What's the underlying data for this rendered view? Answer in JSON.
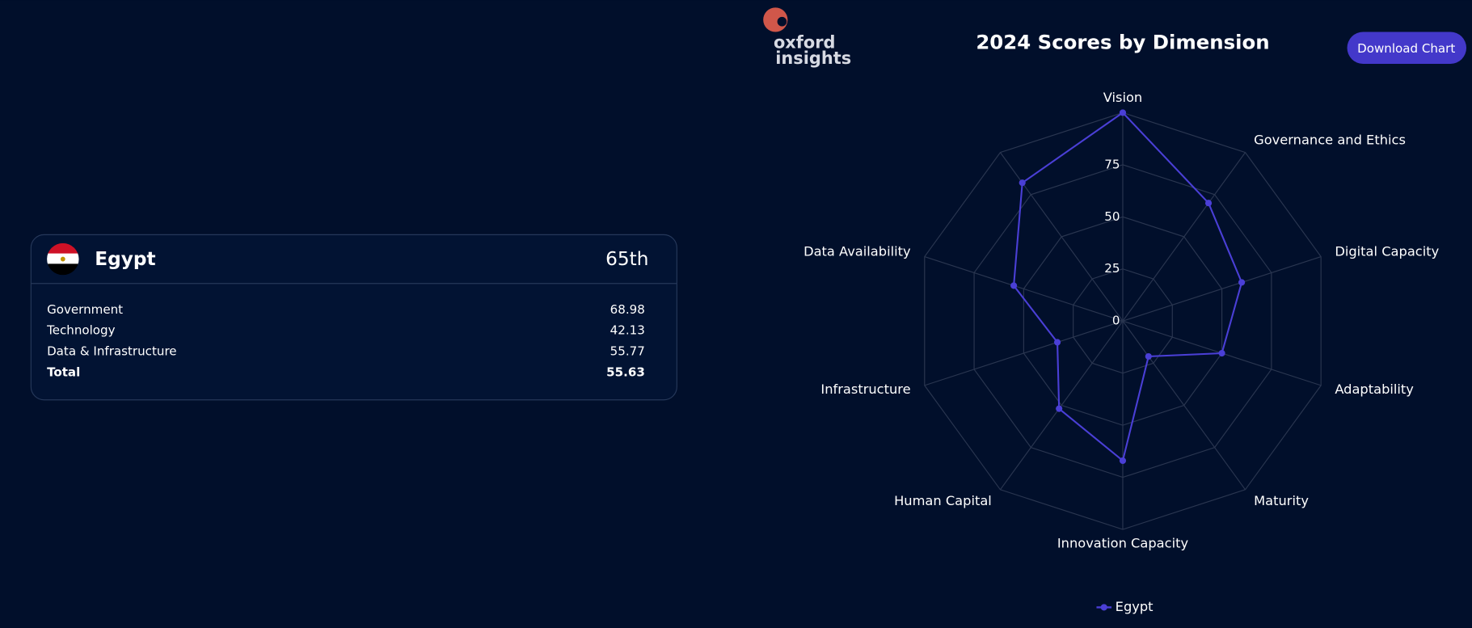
{
  "logo": [
    "oxford",
    "insights"
  ],
  "button": "Download Chart",
  "card": {
    "country": "Egypt",
    "rank": "65th",
    "rows": [
      [
        "Government",
        "68.98"
      ],
      [
        "Technology",
        "42.13"
      ],
      [
        "Data & Infrastructure",
        "55.77"
      ],
      [
        "Total",
        "55.63"
      ]
    ]
  },
  "chart_data": {
    "type": "radar",
    "title": "2024 Scores by Dimension",
    "categories": [
      "Vision",
      "Governance and Ethics",
      "Digital Capacity",
      "Adaptability",
      "Maturity",
      "Innovation Capacity",
      "Human Capital",
      "Infrastructure",
      "Data Availability",
      null
    ],
    "series": [
      {
        "name": "Egypt",
        "color": "#4a3fd6",
        "values": [
          100,
          70,
          60,
          50,
          21,
          67,
          52,
          33,
          55,
          82
        ]
      }
    ],
    "ylim": [
      0,
      100
    ],
    "yticks": [
      0,
      25,
      50,
      75
    ],
    "grid": true,
    "legend": "bottom"
  }
}
